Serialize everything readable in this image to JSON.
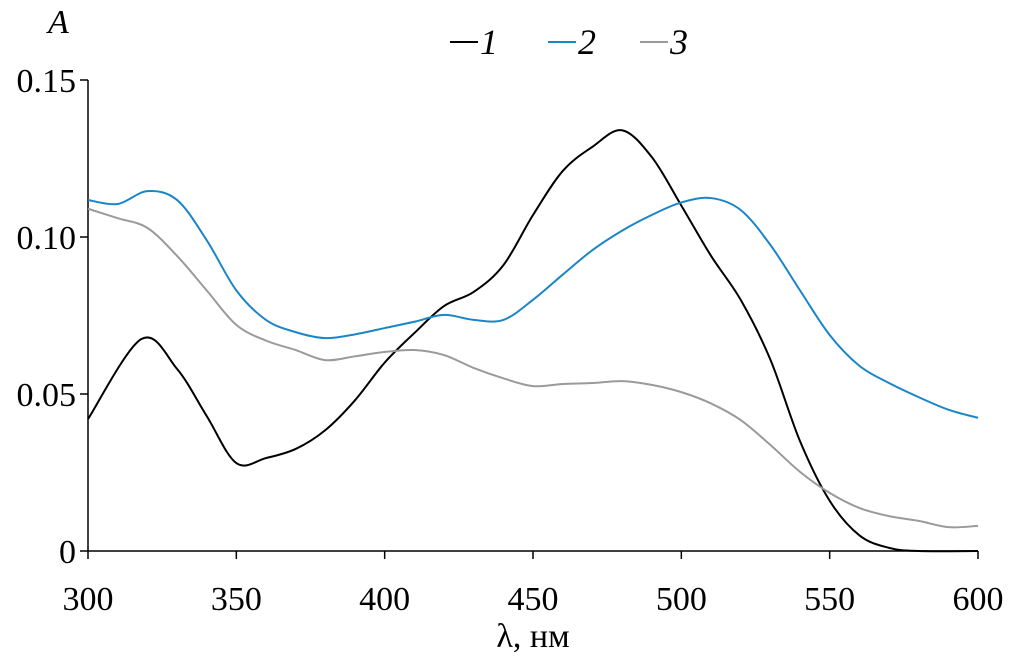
{
  "chart_data": {
    "type": "line",
    "title": "",
    "xlabel": "λ, нм",
    "ylabel": "A",
    "xlim": [
      300,
      600
    ],
    "ylim": [
      0,
      0.15
    ],
    "xticks": [
      "300",
      "350",
      "400",
      "450",
      "500",
      "550",
      "600"
    ],
    "yticks": [
      "0",
      "0.05",
      "0.10",
      "0.15"
    ],
    "grid": false,
    "legend_position": "top-center",
    "series": [
      {
        "name": "1",
        "color": "#000000",
        "x": [
          300,
          318,
          330,
          340,
          350,
          360,
          370,
          380,
          390,
          400,
          410,
          420,
          430,
          440,
          450,
          460,
          470,
          480,
          490,
          500,
          510,
          520,
          530,
          540,
          550,
          560,
          570,
          580,
          600
        ],
        "y": [
          0.042,
          0.0675,
          0.058,
          0.043,
          0.028,
          0.0296,
          0.0325,
          0.0385,
          0.048,
          0.06,
          0.0694,
          0.078,
          0.0825,
          0.091,
          0.107,
          0.121,
          0.1287,
          0.134,
          0.1255,
          0.11,
          0.094,
          0.08,
          0.061,
          0.035,
          0.016,
          0.005,
          0.001,
          0,
          0
        ]
      },
      {
        "name": "2",
        "color": "#1a86c8",
        "x": [
          300,
          310,
          320,
          330,
          340,
          350,
          360,
          370,
          380,
          390,
          400,
          410,
          420,
          430,
          440,
          450,
          460,
          470,
          480,
          490,
          500,
          510,
          520,
          530,
          540,
          550,
          560,
          570,
          580,
          590,
          600
        ],
        "y": [
          0.1118,
          0.1105,
          0.1146,
          0.1118,
          0.099,
          0.083,
          0.0736,
          0.0697,
          0.0678,
          0.069,
          0.071,
          0.073,
          0.0752,
          0.0736,
          0.0736,
          0.08,
          0.088,
          0.0958,
          0.102,
          0.107,
          0.111,
          0.1124,
          0.1086,
          0.0975,
          0.083,
          0.0688,
          0.059,
          0.0535,
          0.049,
          0.045,
          0.0424
        ]
      },
      {
        "name": "3",
        "color": "#9a9a9a",
        "x": [
          300,
          310,
          320,
          330,
          340,
          350,
          360,
          370,
          380,
          390,
          400,
          410,
          420,
          430,
          440,
          450,
          460,
          470,
          480,
          490,
          500,
          510,
          520,
          530,
          540,
          550,
          560,
          570,
          580,
          590,
          600
        ],
        "y": [
          0.109,
          0.106,
          0.1029,
          0.094,
          0.083,
          0.072,
          0.067,
          0.064,
          0.0608,
          0.062,
          0.0634,
          0.064,
          0.0624,
          0.0583,
          0.055,
          0.0525,
          0.0532,
          0.0535,
          0.0541,
          0.0529,
          0.0506,
          0.047,
          0.0417,
          0.0338,
          0.0252,
          0.0185,
          0.0137,
          0.0111,
          0.0096,
          0.0076,
          0.008
        ]
      }
    ]
  }
}
